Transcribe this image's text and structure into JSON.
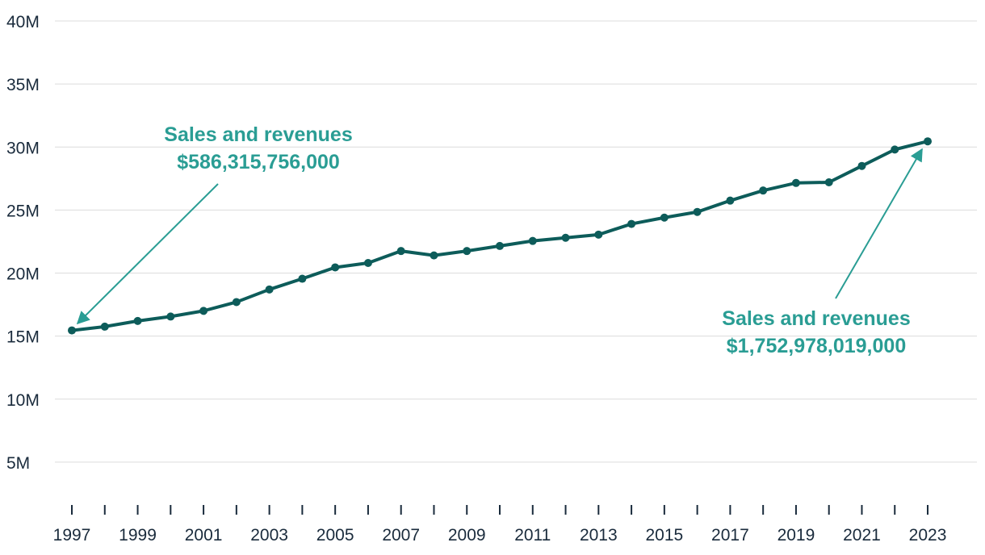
{
  "chart_data": {
    "type": "line",
    "title": "",
    "xlabel": "",
    "ylabel": "",
    "ylim": [
      0,
      40000000
    ],
    "y_ticks": [
      {
        "value": 5000000,
        "label": "5M"
      },
      {
        "value": 10000000,
        "label": "10M"
      },
      {
        "value": 15000000,
        "label": "15M"
      },
      {
        "value": 20000000,
        "label": "20M"
      },
      {
        "value": 25000000,
        "label": "25M"
      },
      {
        "value": 30000000,
        "label": "30M"
      },
      {
        "value": 35000000,
        "label": "35M"
      },
      {
        "value": 40000000,
        "label": "40M"
      }
    ],
    "x_tick_labels": [
      "1997",
      "1999",
      "2001",
      "2003",
      "2005",
      "2007",
      "2009",
      "2011",
      "2013",
      "2015",
      "2017",
      "2019",
      "2021",
      "2023"
    ],
    "x": [
      1997,
      1998,
      1999,
      2000,
      2001,
      2002,
      2003,
      2004,
      2005,
      2006,
      2007,
      2008,
      2009,
      2010,
      2011,
      2012,
      2013,
      2014,
      2015,
      2016,
      2017,
      2018,
      2019,
      2020,
      2021,
      2022,
      2023
    ],
    "values": [
      15450000,
      15750000,
      16200000,
      16550000,
      17000000,
      17700000,
      18700000,
      19550000,
      20450000,
      20800000,
      21750000,
      21400000,
      21750000,
      22150000,
      22550000,
      22800000,
      23050000,
      23900000,
      24400000,
      24850000,
      25750000,
      26550000,
      27150000,
      27200000,
      28500000,
      29800000,
      30450000
    ],
    "colors": {
      "line": "#0d5c5a",
      "annotation": "#2a9d94",
      "grid": "#dcdcdc",
      "text": "#1a2b3c"
    },
    "annotations": [
      {
        "line1": "Sales and revenues",
        "line2": "$586,315,756,000",
        "target_year": 1997
      },
      {
        "line1": "Sales and revenues",
        "line2": "$1,752,978,019,000",
        "target_year": 2023
      }
    ]
  }
}
